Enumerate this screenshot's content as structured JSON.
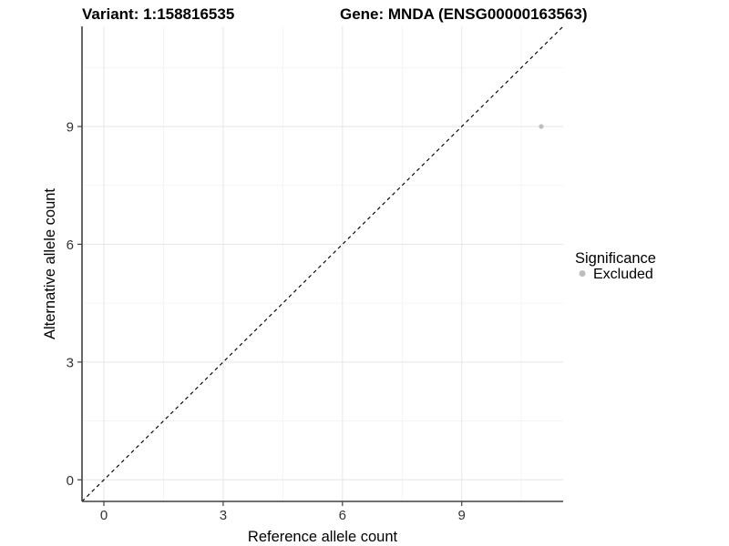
{
  "header": {
    "variant_title": "Variant: 1:158816535",
    "gene_title": "Gene: MNDA (ENSG00000163563)"
  },
  "chart_data": {
    "type": "scatter",
    "title": "Variant: 1:158816535 / Gene: MNDA (ENSG00000163563)",
    "xlabel": "Reference allele count",
    "ylabel": "Alternative allele count",
    "xlim": [
      -0.55,
      11.55
    ],
    "ylim": [
      -0.55,
      11.55
    ],
    "x_major_ticks": [
      0,
      3,
      6,
      9
    ],
    "y_major_ticks": [
      0,
      3,
      6,
      9
    ],
    "x_minor_ticks": [
      1.5,
      4.5,
      7.5,
      10.5
    ],
    "y_minor_ticks": [
      1.5,
      4.5,
      7.5,
      10.5
    ],
    "grid": "major and minor gridlines, light gray on white panel",
    "reference_line": {
      "style": "dashed",
      "slope": 1,
      "intercept": 0,
      "color": "#000000"
    },
    "series": [
      {
        "name": "Excluded",
        "color": "#bdbdbd",
        "point_radius": 2.6,
        "points": [
          {
            "x": 11,
            "y": 9
          }
        ]
      }
    ],
    "legend": {
      "title": "Significance",
      "position": "right",
      "items": [
        {
          "label": "Excluded",
          "color": "#bdbdbd"
        }
      ]
    }
  },
  "colors": {
    "background": "#ffffff",
    "grid_major": "#e6e6e6",
    "grid_minor": "#f3f3f3",
    "axis_line": "#404040",
    "tick_text": "#333333",
    "title_text": "#000000",
    "point": "#bdbdbd"
  }
}
